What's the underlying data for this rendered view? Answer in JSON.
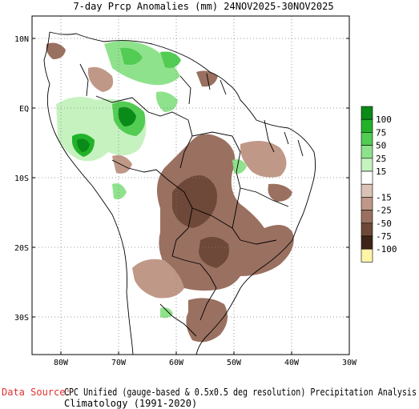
{
  "title": "7-day Prcp Anomalies (mm) 24NOV2025-30NOV2025",
  "lat_ticks": [
    "10N",
    "EQ",
    "10S",
    "20S",
    "30S"
  ],
  "lon_ticks": [
    "80W",
    "70W",
    "60W",
    "50W",
    "40W",
    "30W"
  ],
  "legend": {
    "items": [
      {
        "label": "100",
        "color": "#0a8a18"
      },
      {
        "label": "75",
        "color": "#22b22a"
      },
      {
        "label": "50",
        "color": "#52cc52"
      },
      {
        "label": "25",
        "color": "#8fe28c"
      },
      {
        "label": "15",
        "color": "#c6f2c0"
      },
      {
        "label": "",
        "color": "#ffffff"
      },
      {
        "label": "-15",
        "color": "#dcc2b6"
      },
      {
        "label": "-25",
        "color": "#c09888"
      },
      {
        "label": "-50",
        "color": "#9a7060"
      },
      {
        "label": "-75",
        "color": "#6e4838"
      },
      {
        "label": "-100",
        "color": "#3e2418"
      },
      {
        "label": "",
        "color": "#fff4a8"
      }
    ]
  },
  "footer": {
    "source_label": "Data Source:",
    "source_text": "CPC Unified (gauge-based & 0.5x0.5 deg resolution) Precipitation Analysis",
    "climatology": "Climatology (1991-2020)"
  },
  "colors": {
    "source_label": "#e03030",
    "grid": "#808080"
  }
}
